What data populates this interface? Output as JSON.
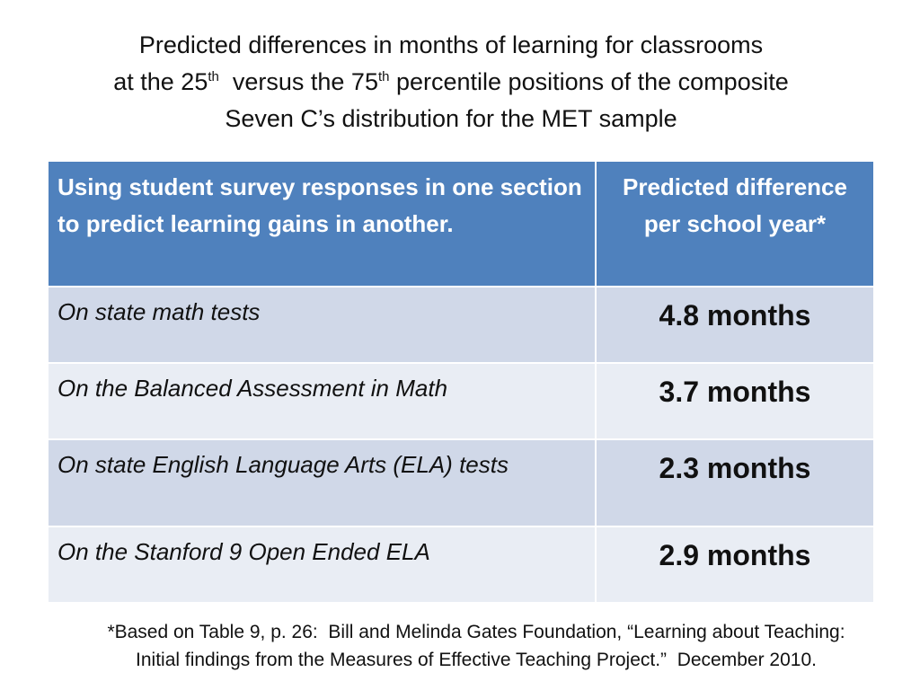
{
  "title": {
    "line1": "Predicted differences in months of learning for classrooms",
    "line2_pre": "at the 25",
    "line2_sup1": "th",
    "line2_mid": "  versus the 75",
    "line2_sup2": "th",
    "line2_post": " percentile positions of the composite",
    "line3": "Seven C’s distribution for the MET sample"
  },
  "table": {
    "headers": [
      "Using student survey responses in one section to predict learning gains in another.",
      "Predicted difference per school year*"
    ],
    "rows": [
      {
        "label": "On state math tests",
        "value": "4.8 months"
      },
      {
        "label": "On the Balanced Assessment in Math",
        "value": "3.7 months"
      },
      {
        "label": "On state English Language Arts (ELA) tests",
        "value": "2.3 months"
      },
      {
        "label": "On the Stanford 9 Open Ended ELA",
        "value": "2.9 months"
      }
    ]
  },
  "footnote": {
    "line1": "*Based on Table 9, p. 26:  Bill and Melinda Gates Foundation, “Learning about Teaching:",
    "line2": "Initial findings from the Measures of Effective Teaching Project.”  December 2010."
  },
  "colors": {
    "header_bg": "#4f81bd",
    "row_odd_bg": "#d0d8e8",
    "row_even_bg": "#e9edf4"
  }
}
